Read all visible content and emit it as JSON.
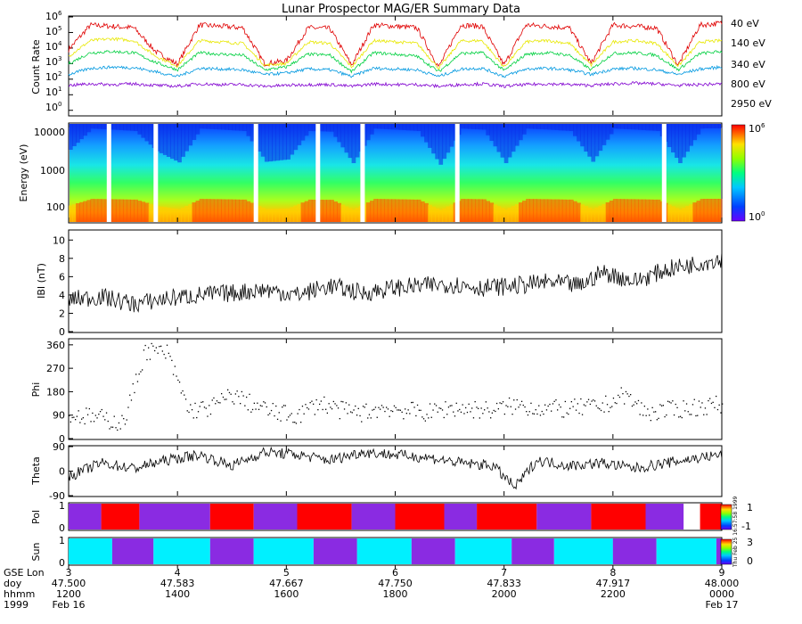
{
  "title": "Lunar Prospector MAG/ER Summary Data",
  "colors": {
    "line_40": "#e00000",
    "line_140": "#e8e800",
    "line_340": "#00d040",
    "line_800": "#0098e0",
    "line_2950": "#8000d0",
    "pol_pos": "#ff0000",
    "pol_neg": "#8a2be2",
    "sun_lit": "#00f0ff",
    "sun_shadow": "#8a2be2"
  },
  "side_label": "Thu Feb 25 16:57:58 1999",
  "chart_data": [
    {
      "id": "count_rate",
      "type": "line",
      "ylabel": "Count Rate",
      "yscale": "log",
      "ylim": [
        0.5,
        1000000
      ],
      "ytick_labels": [
        {
          "base": "10",
          "exp": "6",
          "value": 1000000
        },
        {
          "base": "10",
          "exp": "5",
          "value": 100000
        },
        {
          "base": "10",
          "exp": "4",
          "value": 10000
        },
        {
          "base": "10",
          "exp": "3",
          "value": 1000
        },
        {
          "base": "10",
          "exp": "2",
          "value": 100
        },
        {
          "base": "10",
          "exp": "1",
          "value": 10
        },
        {
          "base": "10",
          "exp": "0",
          "value": 1
        }
      ],
      "series": [
        {
          "name": "40 eV",
          "color": "#e00000",
          "values": [
            8000,
            300000,
            250000,
            200000,
            6000,
            900,
            300000,
            250000,
            200000,
            1000,
            1500,
            200000,
            180000,
            800,
            300000,
            250000,
            200000,
            600,
            300000,
            250000,
            800,
            300000,
            250000,
            200000,
            1000,
            300000,
            250000,
            200000,
            800,
            300000,
            400000
          ]
        },
        {
          "name": "140 eV",
          "color": "#e8e800",
          "values": [
            3000,
            30000,
            40000,
            30000,
            3000,
            700,
            30000,
            25000,
            20000,
            800,
            1000,
            25000,
            20000,
            600,
            30000,
            25000,
            20000,
            500,
            28000,
            30000,
            600,
            25000,
            30000,
            20000,
            800,
            25000,
            30000,
            20000,
            700,
            25000,
            30000
          ]
        },
        {
          "name": "340 eV",
          "color": "#00d040",
          "values": [
            1000,
            5000,
            6000,
            5000,
            1200,
            400,
            5000,
            4000,
            3500,
            400,
            600,
            4000,
            3500,
            300,
            5000,
            4000,
            3000,
            300,
            4500,
            5000,
            350,
            4000,
            5000,
            3500,
            400,
            4500,
            5000,
            3500,
            400,
            4500,
            6000
          ]
        },
        {
          "name": "800 eV",
          "color": "#0098e0",
          "values": [
            200,
            500,
            600,
            550,
            300,
            150,
            500,
            450,
            400,
            200,
            250,
            450,
            400,
            150,
            500,
            450,
            400,
            150,
            450,
            500,
            150,
            450,
            500,
            400,
            200,
            450,
            500,
            400,
            200,
            450,
            600
          ]
        },
        {
          "name": "2950 eV",
          "color": "#8000d0",
          "values": [
            40,
            50,
            45,
            50,
            40,
            35,
            50,
            45,
            45,
            35,
            40,
            45,
            45,
            35,
            50,
            45,
            45,
            35,
            45,
            50,
            35,
            45,
            50,
            45,
            40,
            50,
            55,
            50,
            40,
            45,
            50
          ]
        }
      ]
    },
    {
      "id": "energy_spectrogram",
      "type": "heatmap",
      "ylabel": "Energy (eV)",
      "yscale": "log",
      "ylim": [
        40,
        15000
      ],
      "ytick_labels": [
        "10000",
        "1000",
        "100"
      ],
      "colorbar": {
        "max_base": "10",
        "max_exp": "6",
        "min_base": "10",
        "min_exp": "0"
      },
      "data_gaps_x": [
        3.35,
        3.78,
        4.7,
        5.27,
        5.68,
        6.55,
        8.45
      ]
    },
    {
      "id": "field_magnitude",
      "type": "line",
      "ylabel": "IBI (nT)",
      "ylim": [
        0,
        11
      ],
      "ytick_labels": [
        "10",
        "8",
        "6",
        "4",
        "2",
        "0"
      ],
      "x": [
        3,
        3.3,
        3.6,
        3.9,
        4.2,
        4.5,
        4.8,
        5.1,
        5.4,
        5.7,
        6.0,
        6.25,
        6.5,
        6.8,
        7.1,
        7.4,
        7.7,
        7.9,
        8.2,
        8.5,
        8.8,
        9.0
      ],
      "values": [
        3.5,
        3.8,
        3.0,
        3.6,
        4.0,
        4.2,
        4.6,
        4.0,
        5.0,
        4.2,
        4.8,
        5.0,
        5.2,
        4.8,
        5.0,
        5.4,
        5.0,
        6.5,
        5.5,
        6.8,
        7.5,
        8.0
      ]
    },
    {
      "id": "phi",
      "type": "scatter",
      "ylabel": "Phi",
      "ylim": [
        0,
        380
      ],
      "ytick_labels": [
        "360",
        "270",
        "180",
        "90",
        "0"
      ],
      "x": [
        3.1,
        3.3,
        3.5,
        3.7,
        3.9,
        4.1,
        4.3,
        4.5,
        4.7,
        4.9,
        5.1,
        5.3,
        5.5,
        5.7,
        5.9,
        6.1,
        6.3,
        6.5,
        6.7,
        6.9,
        7.1,
        7.3,
        7.5,
        7.7,
        7.9,
        8.1,
        8.3,
        8.5,
        8.7,
        8.9
      ],
      "values": [
        90,
        80,
        60,
        340,
        330,
        110,
        120,
        170,
        130,
        100,
        90,
        140,
        110,
        100,
        120,
        110,
        100,
        120,
        115,
        110,
        130,
        120,
        115,
        120,
        125,
        170,
        100,
        110,
        120,
        130
      ]
    },
    {
      "id": "theta",
      "type": "line",
      "ylabel": "Theta",
      "ylim": [
        -90,
        90
      ],
      "ytick_labels": [
        "90",
        "0",
        "-90"
      ],
      "x": [
        3,
        3.3,
        3.6,
        3.9,
        4.2,
        4.5,
        4.8,
        5.1,
        5.4,
        5.7,
        6.0,
        6.3,
        6.6,
        6.9,
        7.1,
        7.3,
        7.6,
        7.9,
        8.2,
        8.5,
        8.8,
        9.0
      ],
      "values": [
        -20,
        30,
        10,
        40,
        60,
        20,
        70,
        60,
        40,
        70,
        60,
        50,
        30,
        20,
        -60,
        40,
        20,
        30,
        10,
        30,
        50,
        60
      ]
    },
    {
      "id": "polarity",
      "type": "heatmap",
      "ylabel": "Pol",
      "ylim": [
        0,
        1
      ],
      "ytick_labels": [
        "1",
        "0"
      ],
      "colorbar": {
        "top": "1",
        "bottom": "-1"
      },
      "segments": [
        {
          "x0": 3.0,
          "x1": 3.3,
          "value": -1
        },
        {
          "x0": 3.3,
          "x1": 3.65,
          "value": 1
        },
        {
          "x0": 3.65,
          "x1": 4.3,
          "value": -1
        },
        {
          "x0": 4.3,
          "x1": 4.7,
          "value": 1
        },
        {
          "x0": 4.7,
          "x1": 5.1,
          "value": -1
        },
        {
          "x0": 5.1,
          "x1": 5.6,
          "value": 1
        },
        {
          "x0": 5.6,
          "x1": 6.0,
          "value": -1
        },
        {
          "x0": 6.0,
          "x1": 6.45,
          "value": 1
        },
        {
          "x0": 6.45,
          "x1": 6.75,
          "value": -1
        },
        {
          "x0": 6.75,
          "x1": 7.3,
          "value": 1
        },
        {
          "x0": 7.3,
          "x1": 7.8,
          "value": -1
        },
        {
          "x0": 7.8,
          "x1": 8.3,
          "value": 1
        },
        {
          "x0": 8.3,
          "x1": 8.65,
          "value": -1
        },
        {
          "x0": 8.65,
          "x1": 8.8,
          "value": 0
        },
        {
          "x0": 8.8,
          "x1": 9.0,
          "value": 1
        }
      ]
    },
    {
      "id": "sun",
      "type": "heatmap",
      "ylabel": "Sun",
      "ylim": [
        0,
        1
      ],
      "ytick_labels": [
        "1",
        "0"
      ],
      "colorbar": {
        "top": "3",
        "bottom": "0"
      },
      "segments": [
        {
          "x0": 3.0,
          "x1": 3.4,
          "value": 3
        },
        {
          "x0": 3.4,
          "x1": 3.78,
          "value": 1
        },
        {
          "x0": 3.78,
          "x1": 4.3,
          "value": 3
        },
        {
          "x0": 4.3,
          "x1": 4.7,
          "value": 1
        },
        {
          "x0": 4.7,
          "x1": 5.25,
          "value": 3
        },
        {
          "x0": 5.25,
          "x1": 5.65,
          "value": 1
        },
        {
          "x0": 5.65,
          "x1": 6.15,
          "value": 3
        },
        {
          "x0": 6.15,
          "x1": 6.55,
          "value": 1
        },
        {
          "x0": 6.55,
          "x1": 7.07,
          "value": 3
        },
        {
          "x0": 7.07,
          "x1": 7.46,
          "value": 1
        },
        {
          "x0": 7.46,
          "x1": 8.0,
          "value": 3
        },
        {
          "x0": 8.0,
          "x1": 8.4,
          "value": 1
        },
        {
          "x0": 8.4,
          "x1": 8.95,
          "value": 3
        },
        {
          "x0": 8.95,
          "x1": 9.0,
          "value": 1
        }
      ]
    }
  ],
  "x_axis": {
    "row_labels": [
      "GSE Lon",
      "doy",
      "hhmm",
      "1999"
    ],
    "ticks": [
      {
        "x": 3,
        "lon": "3",
        "doy": "47.500",
        "hhmm": "1200",
        "date": "Feb 16"
      },
      {
        "x": 4,
        "lon": "4",
        "doy": "47.583",
        "hhmm": "1400",
        "date": ""
      },
      {
        "x": 5,
        "lon": "5",
        "doy": "47.667",
        "hhmm": "1600",
        "date": ""
      },
      {
        "x": 6,
        "lon": "6",
        "doy": "47.750",
        "hhmm": "1800",
        "date": ""
      },
      {
        "x": 7,
        "lon": "7",
        "doy": "47.833",
        "hhmm": "2000",
        "date": ""
      },
      {
        "x": 8,
        "lon": "8",
        "doy": "47.917",
        "hhmm": "2200",
        "date": ""
      },
      {
        "x": 9,
        "lon": "9",
        "doy": "48.000",
        "hhmm": "0000",
        "date": "Feb 17"
      }
    ]
  }
}
